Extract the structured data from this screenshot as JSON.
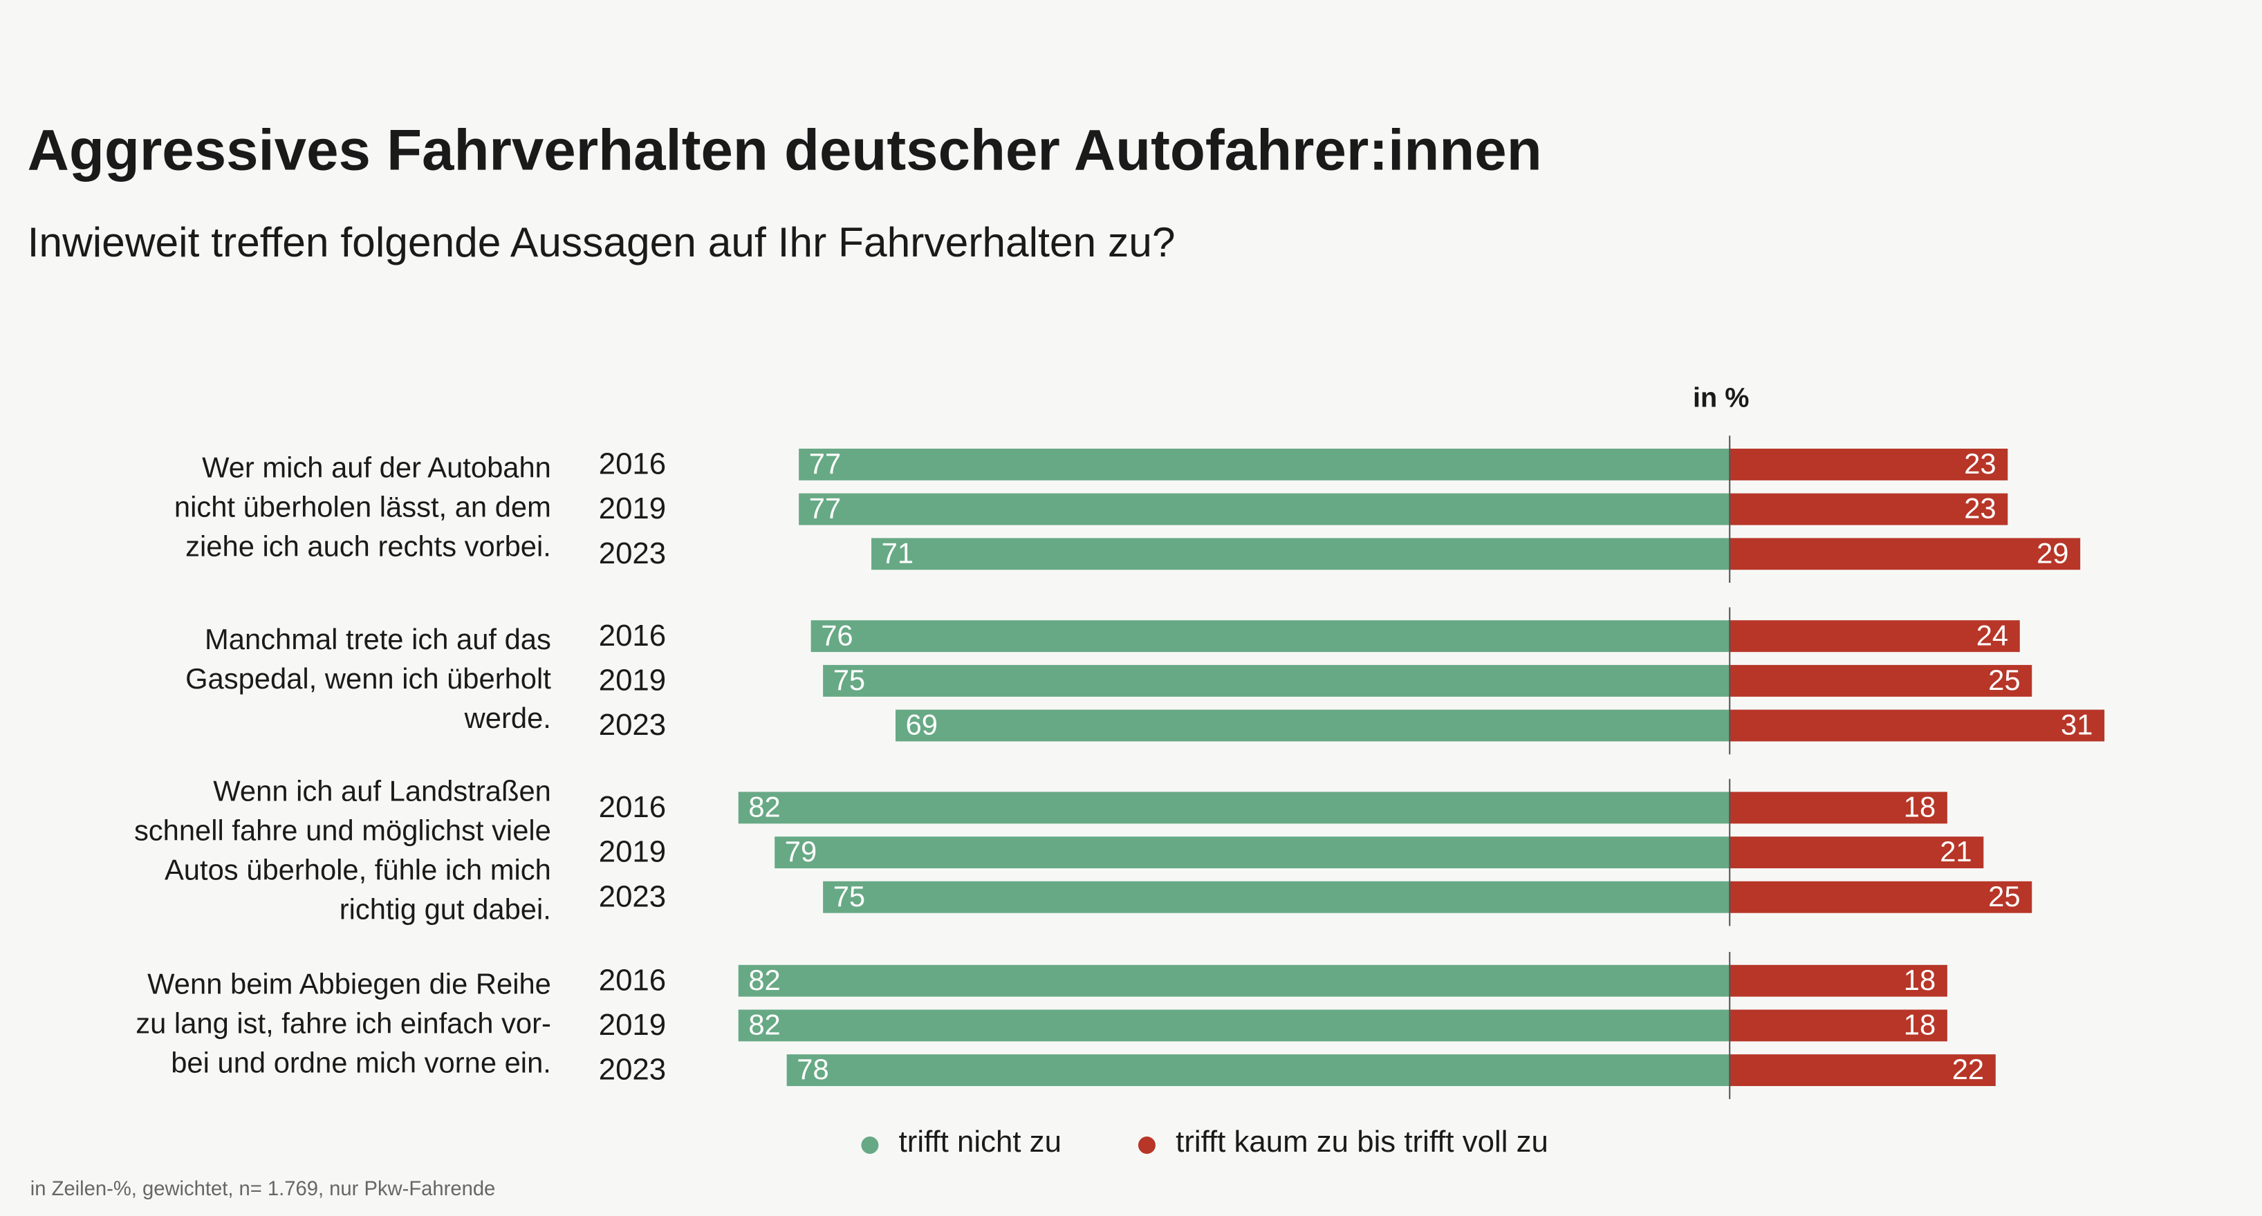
{
  "chart_data": {
    "type": "diverging_bar",
    "title": "Aggressives Fahrverhalten deutscher Autofahrer:innen",
    "subtitle": "Inwieweit treffen folgende Aussagen auf Ihr Fahrverhalten zu?",
    "unit_label": "in %",
    "groups": [
      {
        "label": [
          "Wer mich auf der Autobahn",
          "nicht überholen lässt, an dem",
          "ziehe ich auch rechts vorbei."
        ],
        "years": [
          "2016",
          "2019",
          "2023"
        ]
      },
      {
        "label": [
          "Manchmal trete ich auf das",
          "Gaspedal, wenn ich überholt",
          "werde."
        ],
        "years": [
          "2016",
          "2019",
          "2023"
        ]
      },
      {
        "label": [
          "Wenn ich auf Landstraßen",
          "schnell fahre und möglichst viele",
          "Autos überhole, fühle ich mich",
          "richtig gut dabei."
        ],
        "years": [
          "2016",
          "2019",
          "2023"
        ]
      },
      {
        "label": [
          "Wenn beim Abbiegen die Reihe",
          "zu lang ist, fahre ich einfach vor-",
          "bei und ordne mich vorne ein."
        ],
        "years": [
          "2016",
          "2019",
          "2023"
        ]
      }
    ],
    "series": [
      {
        "name": "trifft nicht zu",
        "color": "#67a985",
        "values": [
          77,
          77,
          71,
          76,
          75,
          69,
          82,
          79,
          75,
          82,
          82,
          78
        ]
      },
      {
        "name": "trifft kaum zu bis trifft voll zu",
        "color": "#b73628",
        "values": [
          23,
          23,
          29,
          24,
          25,
          31,
          18,
          21,
          25,
          18,
          18,
          22
        ]
      }
    ],
    "footnote": "in Zeilen-%, gewichtet, n= 1.769, nur Pkw-Fahrende"
  }
}
